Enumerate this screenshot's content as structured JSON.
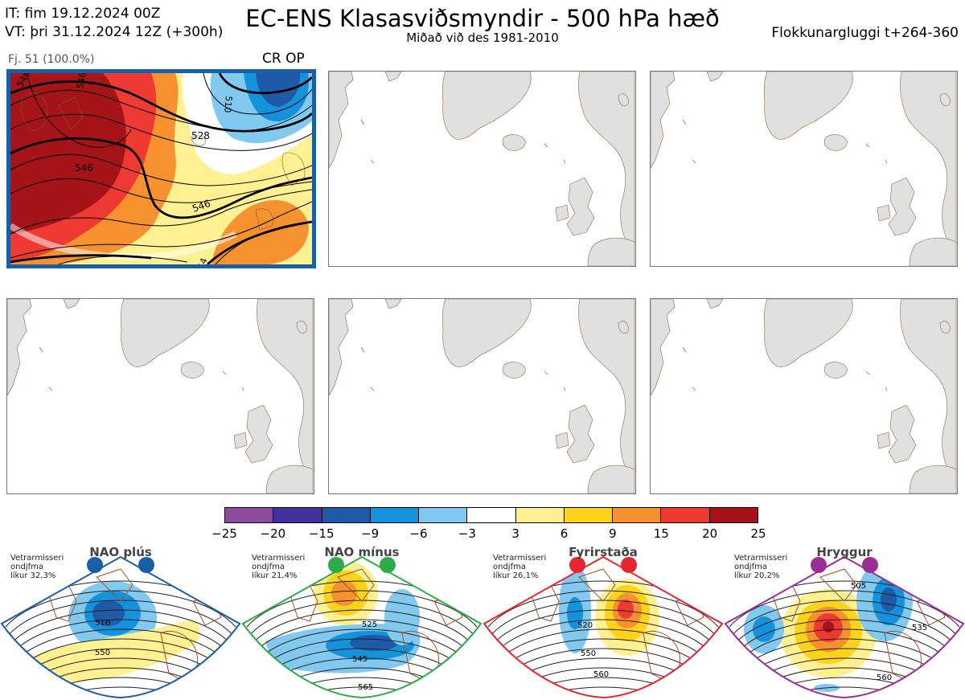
{
  "header": {
    "init_time": "IT: fim 19.12.2024 00Z",
    "valid_time": "VT: þri 31.12.2024 12Z  (+300h)",
    "title": "EC-ENS Klasasviðsmyndir - 500 hPa hæð",
    "subtitle": "Miðað við des 1981-2010",
    "window": "Flokkunargluggi t+264-360"
  },
  "cluster_panel": {
    "member_count": "Fj. 51 (100.0%)",
    "code": "CR OP",
    "contour_labels": [
      "546",
      "546",
      "546",
      "528",
      "546",
      "510",
      "546",
      "54"
    ]
  },
  "colorbar": {
    "ticks": [
      "−25",
      "−20",
      "−15",
      "−9",
      "−6",
      "−3",
      "3",
      "6",
      "9",
      "15",
      "20",
      "25"
    ],
    "colors": [
      "#8c4b9c",
      "#43309a",
      "#1f5aa8",
      "#1493dc",
      "#82c9f0",
      "#ffffff",
      "#fff191",
      "#fcd31b",
      "#f5922f",
      "#ee3a32",
      "#a61318"
    ]
  },
  "regimes": [
    {
      "name": "NAO plús",
      "note": [
        "Vetrarmisseri",
        "ondjfma",
        "líkur 32,3%"
      ],
      "color": "#1a5ea5",
      "labels": [
        "510",
        "550"
      ]
    },
    {
      "name": "NAO mínus",
      "note": [
        "Vetrarmisseri",
        "ondjfma",
        "líkur 21,4%"
      ],
      "color": "#2eaa4a",
      "labels": [
        "525",
        "545",
        "565"
      ]
    },
    {
      "name": "Fyrirstaða",
      "note": [
        "Vetrarmisseri",
        "ondjfma",
        "líkur 26,1%"
      ],
      "color": "#e5262e",
      "labels": [
        "520",
        "550",
        "560"
      ]
    },
    {
      "name": "Hryggur",
      "note": [
        "Vetrarmisseri",
        "ondjfma",
        "líkur 20,2%"
      ],
      "color": "#9b2d97",
      "labels": [
        "505",
        "535",
        "560"
      ]
    }
  ]
}
